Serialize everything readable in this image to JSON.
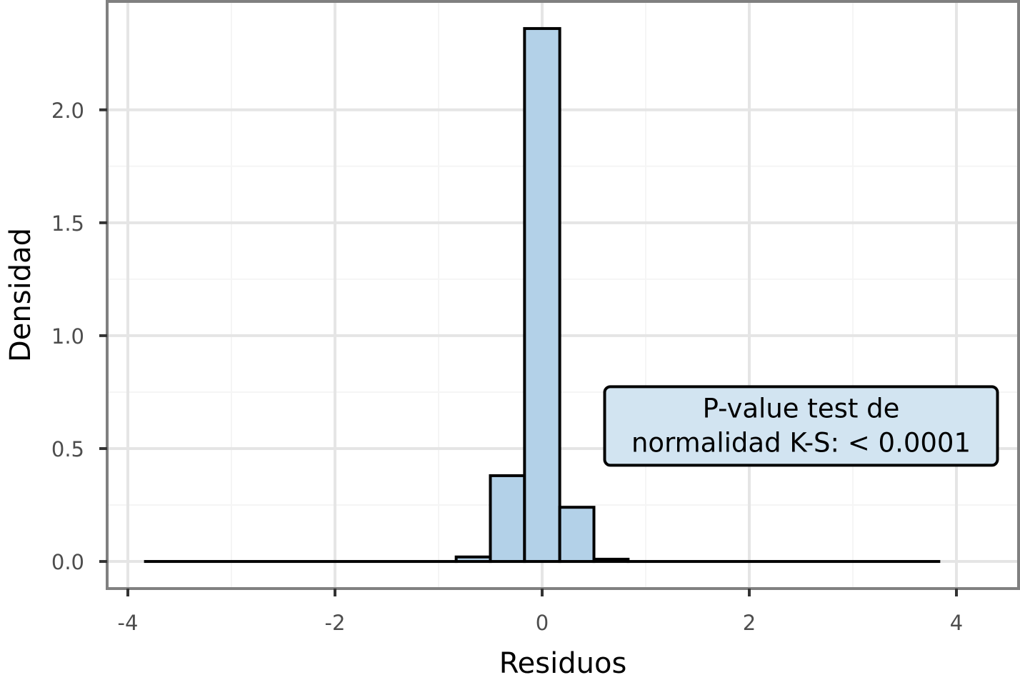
{
  "chart_data": {
    "type": "bar",
    "subtype": "histogram",
    "xlabel": "Residuos",
    "ylabel": "Densidad",
    "xlim": [
      -4.2,
      4.6
    ],
    "ylim": [
      -0.12,
      2.48
    ],
    "x_ticks": [
      -4,
      -2,
      0,
      2,
      4
    ],
    "y_ticks": [
      0.0,
      0.5,
      1.0,
      1.5,
      2.0
    ],
    "x_tick_labels": [
      "-4",
      "-2",
      "0",
      "2",
      "4"
    ],
    "y_tick_labels": [
      "0.0",
      "0.5",
      "1.0",
      "1.5",
      "2.0"
    ],
    "bin_width": 0.3333,
    "bins": [
      {
        "x0": -3.83,
        "x1": -0.83,
        "density": 0.0
      },
      {
        "x0": -0.83,
        "x1": -0.5,
        "density": 0.02
      },
      {
        "x0": -0.5,
        "x1": -0.17,
        "density": 0.38
      },
      {
        "x0": -0.17,
        "x1": 0.17,
        "density": 2.36
      },
      {
        "x0": 0.17,
        "x1": 0.5,
        "density": 0.24
      },
      {
        "x0": 0.5,
        "x1": 0.83,
        "density": 0.01
      },
      {
        "x0": 0.83,
        "x1": 3.83,
        "density": 0.0
      }
    ],
    "annotation": {
      "lines": [
        "P-value test de",
        "normalidad K-S: < 0.0001"
      ],
      "fill": "#d2e4f1",
      "anchor_x": 2.5,
      "anchor_y": 0.6
    },
    "grid": true,
    "colors": {
      "bar_fill": "#b3d1e8",
      "bar_edge": "#000000",
      "panel_border": "#808080",
      "grid_major": "#e5e5e5",
      "grid_minor": "#f5f5f5",
      "tick_text": "#4d4d4d"
    }
  }
}
